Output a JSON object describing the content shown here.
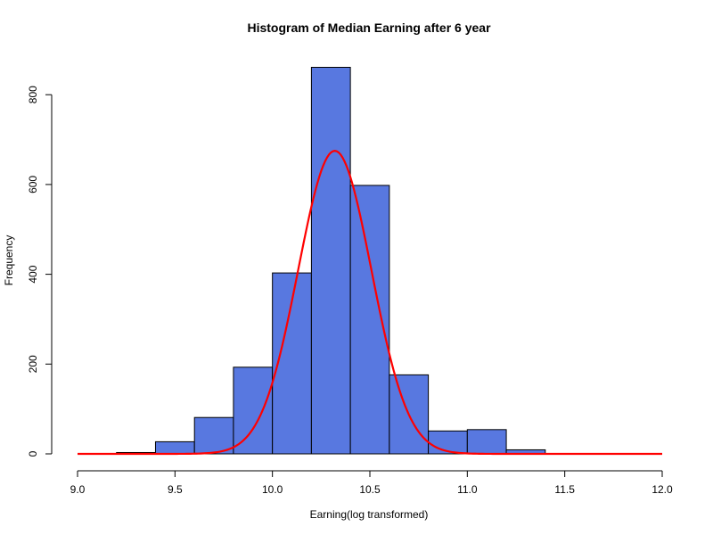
{
  "chart_data": {
    "type": "bar",
    "title": "Histogram of Median Earning after 6 year",
    "xlabel": "Earning(log transformed)",
    "ylabel": "Frequency",
    "xlim": [
      9.0,
      12.0
    ],
    "ylim": [
      0,
      860
    ],
    "x_ticks": [
      9.0,
      9.5,
      10.0,
      10.5,
      11.0,
      11.5,
      12.0
    ],
    "x_tick_labels": [
      "9.0",
      "9.5",
      "10.0",
      "10.5",
      "11.0",
      "11.5",
      "12.0"
    ],
    "y_ticks": [
      0,
      200,
      400,
      600,
      800
    ],
    "y_tick_labels": [
      "0",
      "200",
      "400",
      "600",
      "800"
    ],
    "bins": [
      {
        "start": 9.2,
        "end": 9.4,
        "count": 3
      },
      {
        "start": 9.4,
        "end": 9.6,
        "count": 27
      },
      {
        "start": 9.6,
        "end": 9.8,
        "count": 81
      },
      {
        "start": 9.8,
        "end": 10.0,
        "count": 193
      },
      {
        "start": 10.0,
        "end": 10.2,
        "count": 403
      },
      {
        "start": 10.2,
        "end": 10.4,
        "count": 861
      },
      {
        "start": 10.4,
        "end": 10.6,
        "count": 598
      },
      {
        "start": 10.6,
        "end": 10.8,
        "count": 176
      },
      {
        "start": 10.8,
        "end": 11.0,
        "count": 51
      },
      {
        "start": 11.0,
        "end": 11.2,
        "count": 54
      },
      {
        "start": 11.2,
        "end": 11.4,
        "count": 9
      }
    ],
    "density_curve": {
      "type": "normal",
      "mean": 10.32,
      "sd": 0.188,
      "peak_frequency": 675,
      "range": [
        9.0,
        12.0
      ]
    },
    "colors": {
      "bar_fill": "#5878E0",
      "bar_stroke": "#000000",
      "curve": "#FF0000"
    }
  }
}
